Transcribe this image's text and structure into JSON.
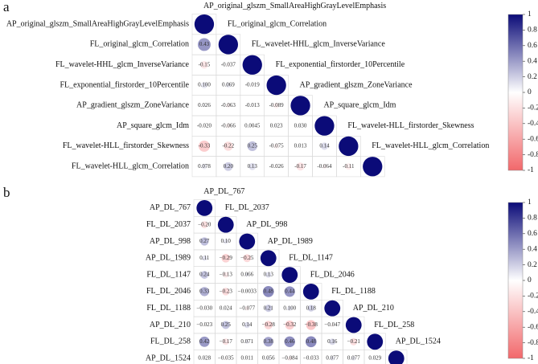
{
  "chart_data": [
    {
      "type": "correlation",
      "panel_label": "a",
      "variables": [
        "AP_original_glszm_SmallAreaHighGrayLevelEmphasis",
        "FL_original_glcm_Correlation",
        "FL_wavelet-HHL_glcm_InverseVariance",
        "FL_exponential_firstorder_10Percentile",
        "AP_gradient_glszm_ZoneVariance",
        "AP_square_glcm_Idm",
        "FL_wavelet-HLL_firstorder_Skewness",
        "FL_wavelet-HLL_glcm_Correlation"
      ],
      "values": [
        [
          1
        ],
        [
          0.43,
          1
        ],
        [
          -0.15,
          -0.037,
          1
        ],
        [
          0.1,
          0.069,
          -0.019,
          1
        ],
        [
          0.026,
          -0.063,
          -0.013,
          -0.089,
          1
        ],
        [
          -0.02,
          -0.066,
          0.0045,
          0.023,
          0.03,
          1
        ],
        [
          -0.33,
          -0.22,
          0.25,
          -0.075,
          0.013,
          0.14,
          1
        ],
        [
          0.078,
          0.2,
          0.13,
          -0.026,
          -0.17,
          -0.064,
          -0.11,
          1
        ]
      ],
      "value_labels": [
        [],
        [
          "0.43"
        ],
        [
          "-0.15",
          "-0.037"
        ],
        [
          "0.100",
          "0.069",
          "-0.019"
        ],
        [
          "0.026",
          "-0.063",
          "-0.013",
          "-0.089"
        ],
        [
          "-0.020",
          "-0.066",
          "0.0045",
          "0.023",
          "0.030"
        ],
        [
          "-0.33",
          "-0.22",
          "0.25",
          "-0.075",
          "0.013",
          "0.14"
        ],
        [
          "0.078",
          "0.20",
          "0.13",
          "-0.026",
          "-0.17",
          "-0.064",
          "-0.11"
        ]
      ],
      "colors": [
        "#f2686b",
        "#ffffff",
        "#0b0b78"
      ],
      "clim": [
        -1,
        1
      ],
      "cticks": [
        1,
        0.8,
        0.6,
        0.4,
        0.2,
        0,
        -0.2,
        -0.4,
        -0.6,
        -0.8,
        -1
      ]
    },
    {
      "type": "correlation",
      "panel_label": "b",
      "variables": [
        "AP_DL_767",
        "FL_DL_2037",
        "AP_DL_998",
        "AP_DL_1989",
        "FL_DL_1147",
        "FL_DL_2046",
        "FL_DL_1188",
        "AP_DL_210",
        "FL_DL_258",
        "AP_DL_1524"
      ],
      "values": [
        [
          1
        ],
        [
          -0.2,
          1
        ],
        [
          0.27,
          0.1,
          1
        ],
        [
          0.11,
          -0.29,
          -0.25,
          1
        ],
        [
          0.24,
          -0.13,
          0.066,
          0.13,
          1
        ],
        [
          0.33,
          -0.23,
          -0.0033,
          0.48,
          0.44,
          1
        ],
        [
          -0.03,
          0.024,
          -0.077,
          0.21,
          0.1,
          0.18,
          1
        ],
        [
          -0.023,
          0.25,
          0.14,
          -0.28,
          -0.32,
          -0.38,
          -0.047,
          1
        ],
        [
          0.42,
          -0.17,
          0.071,
          0.38,
          0.46,
          0.48,
          0.16,
          -0.21,
          1
        ],
        [
          0.028,
          -0.035,
          0.011,
          0.056,
          -0.084,
          -0.033,
          0.077,
          0.077,
          0.029,
          1
        ]
      ],
      "value_labels": [
        [],
        [
          "−0.20"
        ],
        [
          "0.27",
          "0.10"
        ],
        [
          "0.11",
          "−0.29",
          "−0.25"
        ],
        [
          "0.24",
          "−0.13",
          "0.066",
          "0.13"
        ],
        [
          "0.33",
          "−0.23",
          "−0.0033",
          "0.48",
          "0.44"
        ],
        [
          "−0.030",
          "0.024",
          "−0.077",
          "0.21",
          "0.100",
          "0.18"
        ],
        [
          "−0.023",
          "0.25",
          "0.14",
          "−0.28",
          "−0.32",
          "−0.38",
          "−0.047"
        ],
        [
          "0.42",
          "−0.17",
          "0.071",
          "0.38",
          "0.46",
          "0.48",
          "0.16",
          "−0.21"
        ],
        [
          "0.028",
          "−0.035",
          "0.011",
          "0.056",
          "−0.084",
          "−0.033",
          "0.077",
          "0.077",
          "0.029"
        ]
      ],
      "colors": [
        "#f2686b",
        "#ffffff",
        "#0b0b78"
      ],
      "clim": [
        -1,
        1
      ],
      "cticks": [
        1,
        0.8,
        0.6,
        0.4,
        0.2,
        0,
        -0.2,
        -0.4,
        -0.6,
        -0.8,
        -1
      ]
    }
  ]
}
